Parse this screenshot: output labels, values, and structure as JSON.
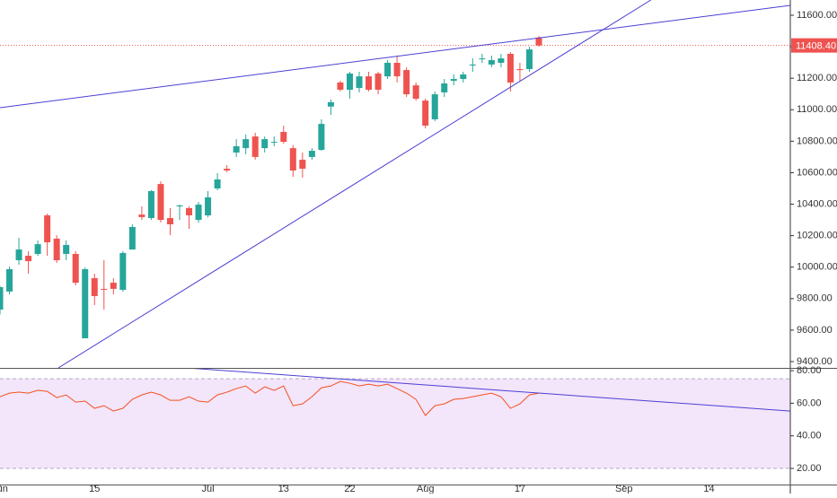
{
  "chart_data": [
    {
      "type": "candlestick",
      "open": [
        9730,
        9845,
        10044,
        10072,
        10084,
        10329,
        10181,
        10084,
        10084,
        9548,
        9930,
        9862,
        9901,
        9856,
        10112,
        10334,
        10312,
        10528,
        10312,
        10386,
        10375,
        10300,
        10329,
        10500,
        10625,
        10728,
        10756,
        10830,
        10756,
        10791,
        10859,
        10756,
        10682,
        10700,
        10745,
        11020,
        11173,
        11127,
        11138,
        11212,
        11230,
        11212,
        11298,
        11252,
        11155,
        11058,
        10939,
        11110,
        11184,
        11195,
        11281,
        11321,
        11287,
        11298,
        11355,
        11258,
        11258,
        11458
      ],
      "high": [
        9880,
        10004,
        10186,
        10101,
        10169,
        10340,
        10203,
        10169,
        10101,
        9998,
        9958,
        10044,
        9930,
        10101,
        10272,
        10386,
        10489,
        10546,
        10375,
        10397,
        10386,
        10414,
        10483,
        10597,
        10648,
        10813,
        10842,
        10853,
        10830,
        10830,
        10899,
        10774,
        10728,
        10756,
        10939,
        11065,
        11184,
        11241,
        11241,
        11241,
        11241,
        11315,
        11344,
        11269,
        11173,
        11070,
        11116,
        11195,
        11224,
        11241,
        11326,
        11355,
        11344,
        11355,
        11366,
        11298,
        11400,
        11469
      ],
      "low": [
        9700,
        9827,
        10015,
        9958,
        10072,
        10072,
        10027,
        10044,
        9884,
        9548,
        9759,
        9730,
        9827,
        9844,
        10112,
        10300,
        10300,
        10283,
        10203,
        10300,
        10243,
        10283,
        10317,
        10489,
        10603,
        10700,
        10717,
        10683,
        10728,
        10768,
        10785,
        10574,
        10569,
        10682,
        10739,
        10967,
        11116,
        11070,
        11110,
        11116,
        11098,
        11195,
        11173,
        11081,
        11058,
        10882,
        10927,
        11081,
        11155,
        11173,
        11241,
        11298,
        11270,
        11270,
        11116,
        11184,
        11241,
        11400
      ],
      "close": [
        9873,
        9987,
        10112,
        10038,
        10146,
        10158,
        10044,
        10141,
        9901,
        9987,
        9816,
        9856,
        9862,
        10090,
        10255,
        10318,
        10483,
        10300,
        10272,
        10392,
        10329,
        10397,
        10443,
        10557,
        10614,
        10768,
        10813,
        10700,
        10813,
        10796,
        10796,
        10614,
        10625,
        10739,
        10910,
        11048,
        11127,
        11230,
        11212,
        11127,
        11127,
        11298,
        11212,
        11098,
        11070,
        10899,
        11098,
        11167,
        11195,
        11224,
        11287,
        11326,
        11315,
        11326,
        11173,
        11252,
        11383,
        11408.4
      ],
      "up_color": "#26a69a",
      "down_color": "#ef5350",
      "xlim": [
        0,
        83.6
      ],
      "ylim": [
        9360,
        11697
      ],
      "yticks": [
        {
          "value": 9400,
          "label": "9400.00"
        },
        {
          "value": 9600,
          "label": "9600.00"
        },
        {
          "value": 9800,
          "label": "9800.00"
        },
        {
          "value": 10000,
          "label": "10000.00"
        },
        {
          "value": 10200,
          "label": "10200.00"
        },
        {
          "value": 10400,
          "label": "10400.00"
        },
        {
          "value": 10600,
          "label": "10600.00"
        },
        {
          "value": 10800,
          "label": "10800.00"
        },
        {
          "value": 11000,
          "label": "11000.00"
        },
        {
          "value": 11200,
          "label": "11200.00"
        },
        {
          "value": 11400,
          "label": "11400.00"
        },
        {
          "value": 11600,
          "label": "11600.00"
        }
      ],
      "last_price": {
        "value": 11408.4,
        "label": "11408.40"
      },
      "last_price_color": "#ef5350",
      "trend_lines": [
        {
          "color": "#4b3fd4",
          "points": [
            [
              0,
              11013
            ],
            [
              83.6,
              11663
            ]
          ]
        },
        {
          "color": "#4b3fd4",
          "points": [
            [
              6.17,
              9360
            ],
            [
              68.85,
              11697
            ]
          ]
        }
      ]
    },
    {
      "type": "line",
      "values": [
        64.0,
        66.2,
        66.8,
        66.2,
        67.9,
        67.3,
        63.5,
        65.1,
        60.7,
        61.3,
        56.9,
        58.5,
        55.2,
        56.9,
        62.4,
        65.1,
        66.8,
        65.1,
        61.8,
        61.8,
        64.0,
        61.3,
        60.7,
        65.1,
        66.8,
        69.0,
        70.6,
        66.2,
        70.1,
        67.9,
        70.6,
        58.5,
        59.6,
        64.0,
        69.5,
        70.6,
        73.4,
        72.3,
        70.6,
        71.7,
        70.6,
        71.7,
        69.0,
        66.2,
        62.4,
        52.5,
        58.5,
        59.6,
        62.4,
        62.9,
        64.0,
        65.1,
        66.2,
        64.0,
        56.9,
        59.6,
        65.1,
        66.2
      ],
      "color": "#f4511e",
      "xlim": [
        0,
        83.6
      ],
      "ylim": [
        10.1,
        81.7
      ],
      "yticks": [
        {
          "value": 20,
          "label": "20.00"
        },
        {
          "value": 40,
          "label": "40.00"
        },
        {
          "value": 60,
          "label": "60.00"
        },
        {
          "value": 80,
          "label": "80.00"
        }
      ],
      "band": [
        20,
        75
      ],
      "band_color": "#f3e5fa",
      "band_line_color": "#b6a6c8",
      "xticks": [
        {
          "value": 0,
          "label": "Jun"
        },
        {
          "value": 10,
          "label": "15"
        },
        {
          "value": 22,
          "label": "Jul"
        },
        {
          "value": 30,
          "label": "13"
        },
        {
          "value": 37,
          "label": "22"
        },
        {
          "value": 45,
          "label": "Aug"
        },
        {
          "value": 55,
          "label": "17"
        },
        {
          "value": 66,
          "label": "Sep"
        },
        {
          "value": 75,
          "label": "14"
        }
      ],
      "trend_lines": [
        {
          "color": "#4b3fd4",
          "points": [
            [
              19.75,
              81.7
            ],
            [
              83.6,
              55.2
            ]
          ]
        }
      ]
    }
  ]
}
